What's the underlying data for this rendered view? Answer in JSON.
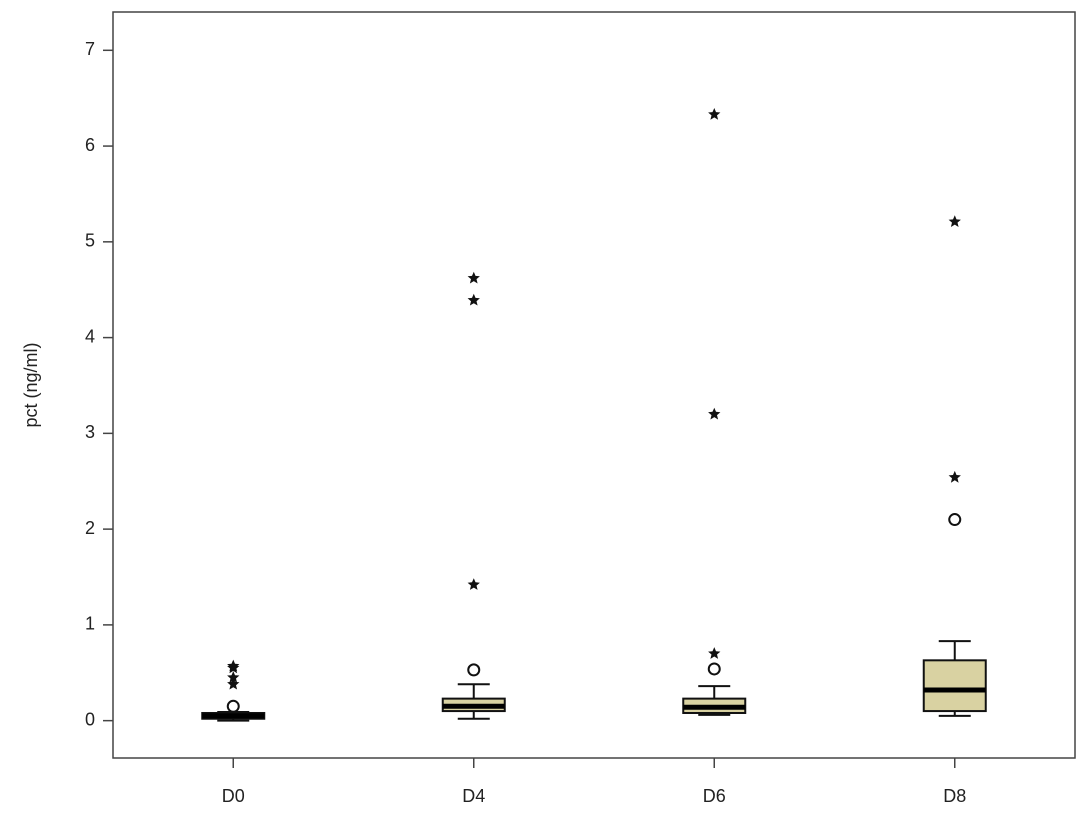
{
  "chart_data": {
    "type": "boxplot",
    "y_label": "pct (ng/ml)",
    "categories": [
      "D0",
      "D4",
      "D6",
      "D8"
    ],
    "box_color": "#d9d2a2",
    "boxes": [
      {
        "whisker_low": 0.0,
        "q1": 0.02,
        "median": 0.05,
        "q3": 0.08,
        "whisker_high": 0.09,
        "outliers": [
          0.15
        ],
        "extremes": [
          0.38,
          0.45,
          0.55,
          0.57
        ]
      },
      {
        "whisker_low": 0.02,
        "q1": 0.1,
        "median": 0.15,
        "q3": 0.23,
        "whisker_high": 0.38,
        "outliers": [
          0.53
        ],
        "extremes": [
          1.42,
          4.39,
          4.62
        ]
      },
      {
        "whisker_low": 0.06,
        "q1": 0.08,
        "median": 0.14,
        "q3": 0.23,
        "whisker_high": 0.36,
        "outliers": [
          0.54
        ],
        "extremes": [
          0.7,
          3.2,
          6.33
        ]
      },
      {
        "whisker_low": 0.05,
        "q1": 0.1,
        "median": 0.32,
        "q3": 0.63,
        "whisker_high": 0.83,
        "outliers": [
          2.1
        ],
        "extremes": [
          2.54,
          5.21
        ]
      }
    ],
    "ylim": [
      -0.39,
      7.4
    ],
    "yticks": [
      0,
      1,
      2,
      3,
      4,
      5,
      6,
      7
    ],
    "grid": false
  }
}
